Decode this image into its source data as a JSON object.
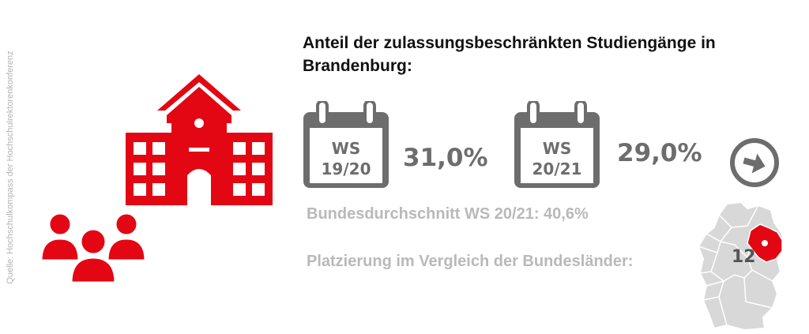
{
  "source": "Quelle: Hochschulkompass der Hochschulrektorenkonferenz",
  "title": "Anteil der zulassungsbeschränkten Studiengänge in Brandenburg:",
  "semesters": [
    {
      "ws": "WS",
      "term": "19/20",
      "value": "31,0%"
    },
    {
      "ws": "WS",
      "term": "20/21",
      "value": "29,0%"
    }
  ],
  "average": "Bundesdurchschnitt WS 20/21: 40,6%",
  "ranking_label": "Platzierung im Vergleich der Bundesländer:",
  "rank": "12",
  "colors": {
    "accent": "#e30613",
    "gray": "#6d6d6d",
    "light_gray": "#b9b9b9",
    "map_gray": "#d8d8d8"
  },
  "icons": [
    "school-building-icon",
    "group-people-icon",
    "calendar-icon",
    "arrow-right-circle-icon",
    "germany-map-icon"
  ]
}
